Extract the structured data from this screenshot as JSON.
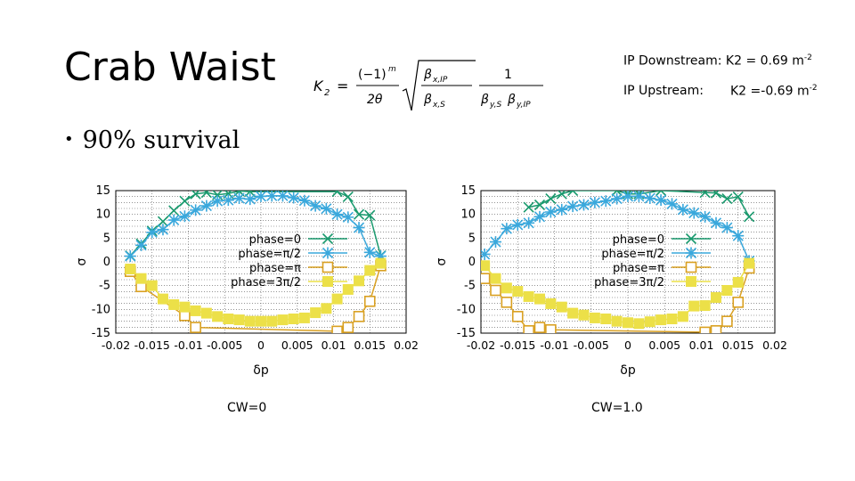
{
  "slide": {
    "title": "Crab Waist",
    "formula": {
      "lhs": "K",
      "lhs_sub": "2",
      "eq": "=",
      "num1": "(−1)",
      "num1_sup": "m",
      "den1": "2θ",
      "rad_num": "β",
      "rad_num_sub": "x,IP",
      "rad_den": "β",
      "rad_den_sub": "x,S",
      "num2": "1",
      "den2_a": "β",
      "den2_a_sub": "y,S",
      "den2_b": "β",
      "den2_b_sub": "y,IP"
    },
    "ip_downstream": {
      "label": "IP Downstream: ",
      "value": "K2 = 0.69 m",
      "unit_sup": "-2"
    },
    "ip_upstream": {
      "label": "IP Upstream:",
      "value": "K2 =-0.69 m",
      "unit_sup": "-2"
    },
    "bullet": "90% survival"
  },
  "colors": {
    "phase0": "#1a9a6e",
    "phase_pi2": "#3aa8dc",
    "phase_pi": "#d9a021",
    "phase_3pi2": "#ece048"
  },
  "chart_data": [
    {
      "type": "line",
      "caption": "CW=0",
      "xlabel": "δp",
      "ylabel": "σ",
      "xlim": [
        -0.02,
        0.02
      ],
      "ylim": [
        -15,
        15
      ],
      "xticks": [
        -0.02,
        -0.015,
        -0.01,
        -0.005,
        0,
        0.005,
        0.01,
        0.015,
        0.02
      ],
      "xtick_labels": [
        "-0.02",
        "-0.015",
        "-0.01",
        "-0.005",
        "0",
        "0.005",
        "0.01",
        "0.015",
        "0.02"
      ],
      "yticks": [
        15,
        10,
        5,
        0,
        -5,
        -10,
        -15
      ],
      "ytick_labels": [
        "15",
        "10",
        "5",
        "0",
        "-5",
        "-10",
        "-15"
      ],
      "grid": true,
      "legend": "center-right",
      "series": [
        {
          "name": "phase=0",
          "marker": "x",
          "color_key": "phase0",
          "x": [
            -0.018,
            -0.0165,
            -0.015,
            -0.0135,
            -0.012,
            -0.0105,
            -0.009,
            -0.0075,
            -0.006,
            -0.0045,
            -0.003,
            -0.0015,
            0.0105,
            0.012,
            0.0135,
            0.015,
            0.0165
          ],
          "y": [
            1.3,
            3.8,
            6.5,
            8.5,
            10.8,
            12.8,
            14.3,
            14.6,
            14.1,
            14.4,
            14.9,
            14.8,
            14.8,
            13.7,
            10,
            9.8,
            1.3
          ]
        },
        {
          "name": "phase=π/2",
          "marker": "asterisk",
          "color_key": "phase_pi2",
          "x": [
            -0.018,
            -0.0165,
            -0.015,
            -0.0135,
            -0.012,
            -0.0105,
            -0.009,
            -0.0075,
            -0.006,
            -0.0045,
            -0.003,
            -0.0015,
            0,
            0.0015,
            0.003,
            0.0045,
            0.006,
            0.0075,
            0.009,
            0.0105,
            0.012,
            0.0135,
            0.015,
            0.0165
          ],
          "y": [
            1.2,
            3.5,
            6.2,
            6.8,
            8.8,
            9.6,
            10.9,
            11.8,
            12.8,
            13,
            13.4,
            13.2,
            13.8,
            13.9,
            13.9,
            13.5,
            12.9,
            11.8,
            11.2,
            10,
            9.4,
            7.2,
            2,
            1.2
          ]
        },
        {
          "name": "phase=π",
          "marker": "square-open",
          "color_key": "phase_pi",
          "x": [
            -0.018,
            -0.0165,
            -0.0105,
            -0.009,
            0.0105,
            0.012,
            0.0135,
            0.015,
            0.0165
          ],
          "y": [
            -2,
            -5.2,
            -11.3,
            -13.8,
            -14.6,
            -13.8,
            -11.5,
            -8.3,
            -0.8
          ]
        },
        {
          "name": "phase=3π/2",
          "marker": "square-filled",
          "color_key": "phase_3pi2",
          "x": [
            -0.018,
            -0.0165,
            -0.015,
            -0.0135,
            -0.012,
            -0.0105,
            -0.009,
            -0.0075,
            -0.006,
            -0.0045,
            -0.003,
            -0.0015,
            0,
            0.0015,
            0.003,
            0.0045,
            0.006,
            0.0075,
            0.009,
            0.0105,
            0.012,
            0.0135,
            0.015,
            0.0165
          ],
          "y": [
            -1.5,
            -3.5,
            -5,
            -7.8,
            -9,
            -9.5,
            -10.3,
            -10.8,
            -11.5,
            -12,
            -12.2,
            -12.5,
            -12.5,
            -12.5,
            -12.2,
            -12,
            -11.8,
            -10.7,
            -9.8,
            -7.8,
            -5.8,
            -4,
            -1.8,
            -0.3
          ]
        }
      ]
    },
    {
      "type": "line",
      "caption": "CW=1.0",
      "xlabel": "δp",
      "ylabel": "σ",
      "xlim": [
        -0.02,
        0.02
      ],
      "ylim": [
        -15,
        15
      ],
      "xticks": [
        -0.02,
        -0.015,
        -0.01,
        -0.005,
        0,
        0.005,
        0.01,
        0.015,
        0.02
      ],
      "xtick_labels": [
        "-0.02",
        "-0.015",
        "-0.01",
        "-0.005",
        "0",
        "0.005",
        "0.01",
        "0.015",
        "0.02"
      ],
      "yticks": [
        15,
        10,
        5,
        0,
        -5,
        -10,
        -15
      ],
      "ytick_labels": [
        "15",
        "10",
        "5",
        "0",
        "-5",
        "-10",
        "-15"
      ],
      "grid": true,
      "legend": "center-right",
      "series": [
        {
          "name": "phase=0",
          "marker": "x",
          "color_key": "phase0",
          "x": [
            -0.0135,
            -0.012,
            -0.0105,
            -0.009,
            -0.0075,
            -0.0015,
            0,
            0.0015,
            0.0045,
            0.0105,
            0.012,
            0.0135,
            0.015,
            0.0165
          ],
          "y": [
            11.5,
            12,
            13.3,
            14.3,
            15,
            15,
            14.3,
            14.3,
            15,
            14.6,
            14.5,
            13.3,
            13.7,
            9.5
          ]
        },
        {
          "name": "phase=π/2",
          "marker": "asterisk",
          "color_key": "phase_pi2",
          "x": [
            -0.0195,
            -0.018,
            -0.0165,
            -0.015,
            -0.0135,
            -0.012,
            -0.0105,
            -0.009,
            -0.0075,
            -0.006,
            -0.0045,
            -0.003,
            -0.0015,
            0,
            0.0015,
            0.003,
            0.0045,
            0.006,
            0.0075,
            0.009,
            0.0105,
            0.012,
            0.0135,
            0.015,
            0.0165
          ],
          "y": [
            1.6,
            4.2,
            7,
            7.8,
            8.2,
            9.5,
            10.5,
            11,
            11.7,
            12,
            12.5,
            12.8,
            13.3,
            13.8,
            13.8,
            13.4,
            13,
            12.2,
            11,
            10.3,
            9.5,
            8.2,
            7.2,
            5.5,
            0.2
          ]
        },
        {
          "name": "phase=π",
          "marker": "square-open",
          "color_key": "phase_pi",
          "x": [
            -0.0195,
            -0.018,
            -0.0165,
            -0.015,
            -0.0135,
            -0.012,
            -0.0105,
            0.0105,
            0.012,
            0.0135,
            0.015,
            0.0165
          ],
          "y": [
            -3.5,
            -6,
            -8.5,
            -11.5,
            -14.5,
            -13.8,
            -14.3,
            -14.8,
            -14.5,
            -12.5,
            -8.5,
            -1.3
          ]
        },
        {
          "name": "phase=3π/2",
          "marker": "square-filled",
          "color_key": "phase_3pi2",
          "x": [
            -0.0195,
            -0.018,
            -0.0165,
            -0.015,
            -0.0135,
            -0.012,
            -0.0105,
            -0.009,
            -0.0075,
            -0.006,
            -0.0045,
            -0.003,
            -0.0015,
            0,
            0.0015,
            0.003,
            0.0045,
            0.006,
            0.0075,
            0.009,
            0.0105,
            0.012,
            0.0135,
            0.015,
            0.0165
          ],
          "y": [
            -0.8,
            -3.5,
            -5.5,
            -6.2,
            -7.3,
            -7.8,
            -8.8,
            -9.5,
            -10.8,
            -11.2,
            -11.8,
            -12,
            -12.5,
            -12.8,
            -13,
            -12.6,
            -12.2,
            -12,
            -11.5,
            -9.3,
            -9.2,
            -7.5,
            -6,
            -4.3,
            -0.3
          ]
        }
      ]
    }
  ]
}
